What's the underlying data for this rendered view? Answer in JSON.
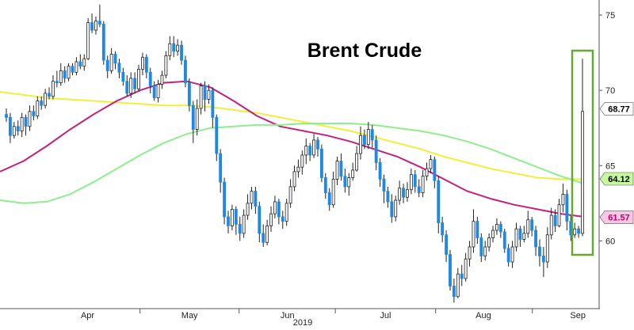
{
  "chart_data": {
    "type": "candlestick",
    "title": "Brent Crude",
    "year_label": "2019",
    "x_ticks": [
      "Apr",
      "May",
      "Jun",
      "Jul",
      "Aug",
      "Sep"
    ],
    "y_ticks": [
      60,
      65,
      70,
      75
    ],
    "ylim": [
      55.5,
      76
    ],
    "grid": false,
    "y_axis_side": "right",
    "candle_colors": {
      "down": "#1e88e5",
      "up": "#ffffff",
      "outline": "#222222"
    },
    "price_tags": [
      {
        "value": 68.77,
        "label": "68.77",
        "bg": "#ffffff",
        "fg": "#000000"
      },
      {
        "value": 64.12,
        "label": "64.12",
        "bg": "#c8f7a0",
        "fg": "#000000"
      },
      {
        "value": 61.57,
        "label": "61.57",
        "bg": "#f7c7e3",
        "fg": "#c0006e"
      }
    ],
    "series": [
      {
        "color": "#f2ee3b",
        "values": [
          69.9,
          69.7,
          69.5,
          69.4,
          69.3,
          69.2,
          69.1,
          69.0,
          69.0,
          68.9,
          68.7,
          68.5,
          68.2,
          67.9,
          67.6,
          67.3,
          66.9,
          66.5,
          66.1,
          65.6,
          65.2,
          64.8,
          64.5,
          64.2,
          64.1,
          64.1
        ]
      },
      {
        "color": "#c2227d",
        "values": [
          64.6,
          65.3,
          66.3,
          67.4,
          68.4,
          69.3,
          70.0,
          70.5,
          70.6,
          70.2,
          69.3,
          68.3,
          67.6,
          67.3,
          67.0,
          66.6,
          66.1,
          65.6,
          64.9,
          64.1,
          63.3,
          62.8,
          62.4,
          62.1,
          61.8,
          61.6
        ]
      },
      {
        "color": "#8eee8e",
        "values": [
          62.7,
          62.5,
          62.6,
          63.1,
          63.9,
          64.8,
          65.7,
          66.5,
          67.1,
          67.5,
          67.6,
          67.7,
          67.7,
          67.8,
          67.8,
          67.8,
          67.7,
          67.5,
          67.3,
          67.0,
          66.6,
          66.1,
          65.5,
          64.9,
          64.3,
          63.8
        ]
      }
    ],
    "candles": [
      [
        68.4,
        68.2,
        68.8,
        67.9
      ],
      [
        68.2,
        67.0,
        68.5,
        66.5
      ],
      [
        67.0,
        67.6,
        67.9,
        66.8
      ],
      [
        67.6,
        67.3,
        68.0,
        67.0
      ],
      [
        67.3,
        68.2,
        68.5,
        66.9
      ],
      [
        68.2,
        67.6,
        68.4,
        67.0
      ],
      [
        67.6,
        68.6,
        69.0,
        67.3
      ],
      [
        68.6,
        68.3,
        69.0,
        68.0
      ],
      [
        68.3,
        69.3,
        69.6,
        68.1
      ],
      [
        69.3,
        69.0,
        69.6,
        68.7
      ],
      [
        69.0,
        69.8,
        70.1,
        68.8
      ],
      [
        69.8,
        69.6,
        70.2,
        69.4
      ],
      [
        69.6,
        70.6,
        71.0,
        69.4
      ],
      [
        70.6,
        70.5,
        71.3,
        70.2
      ],
      [
        70.5,
        71.3,
        71.8,
        70.3
      ],
      [
        71.3,
        70.8,
        71.6,
        70.5
      ],
      [
        70.8,
        71.6,
        71.8,
        70.6
      ],
      [
        71.6,
        71.2,
        71.8,
        71.0
      ],
      [
        71.2,
        71.9,
        72.2,
        71.0
      ],
      [
        71.9,
        71.6,
        72.4,
        71.4
      ],
      [
        71.6,
        72.1,
        72.4,
        71.3
      ],
      [
        72.1,
        74.5,
        74.8,
        72.0
      ],
      [
        74.5,
        74.0,
        75.1,
        73.8
      ],
      [
        74.0,
        74.6,
        74.9,
        73.7
      ],
      [
        74.6,
        74.4,
        75.7,
        74.2
      ],
      [
        74.4,
        72.0,
        74.6,
        71.7
      ],
      [
        72.0,
        71.3,
        72.3,
        70.8
      ],
      [
        71.3,
        72.4,
        72.8,
        71.1
      ],
      [
        72.4,
        71.8,
        72.6,
        71.4
      ],
      [
        71.8,
        71.2,
        72.1,
        70.8
      ],
      [
        71.2,
        70.6,
        71.5,
        70.3
      ],
      [
        70.6,
        69.8,
        71.0,
        69.6
      ],
      [
        69.8,
        70.8,
        71.2,
        69.5
      ],
      [
        70.8,
        70.1,
        71.2,
        69.8
      ],
      [
        70.1,
        71.4,
        71.7,
        69.9
      ],
      [
        71.4,
        72.2,
        72.5,
        71.0
      ],
      [
        72.2,
        71.2,
        72.4,
        70.8
      ],
      [
        71.2,
        70.3,
        71.5,
        69.8
      ],
      [
        70.3,
        69.5,
        70.6,
        69.3
      ],
      [
        69.5,
        70.4,
        70.7,
        69.2
      ],
      [
        70.4,
        71.0,
        71.3,
        70.1
      ],
      [
        71.0,
        72.3,
        72.6,
        70.8
      ],
      [
        72.3,
        73.1,
        73.6,
        72.0
      ],
      [
        73.1,
        72.6,
        73.6,
        72.2
      ],
      [
        72.6,
        73.0,
        73.4,
        72.3
      ],
      [
        73.0,
        72.0,
        73.3,
        71.7
      ],
      [
        72.0,
        70.5,
        72.3,
        70.2
      ],
      [
        70.5,
        69.0,
        70.8,
        68.6
      ],
      [
        69.0,
        67.4,
        69.3,
        66.5
      ],
      [
        67.4,
        68.8,
        69.4,
        67.0
      ],
      [
        68.8,
        70.3,
        70.5,
        68.4
      ],
      [
        70.3,
        69.4,
        70.6,
        68.6
      ],
      [
        69.4,
        70.0,
        70.4,
        69.1
      ],
      [
        70.0,
        68.2,
        70.2,
        67.5
      ],
      [
        68.2,
        65.8,
        68.4,
        65.3
      ],
      [
        65.8,
        63.9,
        66.1,
        63.2
      ],
      [
        63.9,
        61.6,
        64.2,
        61.1
      ],
      [
        61.6,
        61.0,
        62.0,
        60.5
      ],
      [
        61.0,
        62.1,
        62.4,
        60.7
      ],
      [
        62.1,
        61.1,
        62.3,
        60.4
      ],
      [
        61.1,
        60.5,
        61.6,
        60.0
      ],
      [
        60.5,
        61.7,
        62.1,
        60.2
      ],
      [
        61.7,
        62.5,
        63.1,
        61.4
      ],
      [
        62.5,
        63.3,
        63.6,
        62.1
      ],
      [
        63.3,
        62.3,
        63.6,
        61.8
      ],
      [
        62.3,
        60.5,
        62.6,
        59.9
      ],
      [
        60.5,
        59.9,
        61.1,
        59.6
      ],
      [
        59.9,
        61.0,
        61.4,
        59.7
      ],
      [
        61.0,
        61.8,
        62.3,
        60.6
      ],
      [
        61.8,
        62.6,
        63.0,
        61.5
      ],
      [
        62.6,
        61.6,
        62.8,
        61.1
      ],
      [
        61.6,
        61.3,
        62.0,
        60.8
      ],
      [
        61.3,
        62.5,
        62.8,
        61.0
      ],
      [
        62.5,
        63.6,
        64.1,
        62.2
      ],
      [
        63.6,
        64.6,
        65.0,
        63.3
      ],
      [
        64.6,
        64.9,
        65.4,
        64.2
      ],
      [
        64.9,
        65.7,
        66.0,
        64.4
      ],
      [
        65.7,
        66.3,
        66.8,
        65.1
      ],
      [
        66.3,
        65.7,
        66.5,
        65.3
      ],
      [
        65.7,
        66.7,
        67.1,
        65.5
      ],
      [
        66.7,
        66.1,
        66.9,
        65.6
      ],
      [
        66.1,
        64.2,
        66.4,
        63.9
      ],
      [
        64.2,
        63.2,
        64.5,
        62.8
      ],
      [
        63.2,
        62.4,
        63.5,
        62.0
      ],
      [
        62.4,
        64.1,
        64.6,
        62.2
      ],
      [
        64.1,
        65.3,
        65.6,
        63.7
      ],
      [
        65.3,
        64.3,
        65.8,
        64.0
      ],
      [
        64.3,
        63.6,
        64.8,
        63.2
      ],
      [
        63.6,
        64.2,
        64.5,
        63.0
      ],
      [
        64.2,
        64.7,
        65.2,
        64.0
      ],
      [
        64.7,
        65.8,
        66.3,
        64.6
      ],
      [
        65.8,
        67.0,
        67.6,
        65.4
      ],
      [
        67.0,
        66.4,
        67.4,
        66.1
      ],
      [
        66.4,
        67.4,
        67.9,
        66.1
      ],
      [
        67.4,
        66.7,
        67.7,
        66.2
      ],
      [
        66.7,
        65.2,
        67.0,
        64.7
      ],
      [
        65.2,
        64.1,
        65.5,
        63.6
      ],
      [
        64.1,
        63.3,
        64.4,
        62.5
      ],
      [
        63.3,
        62.6,
        63.6,
        62.2
      ],
      [
        62.6,
        61.6,
        63.1,
        61.2
      ],
      [
        61.6,
        62.7,
        63.0,
        61.3
      ],
      [
        62.7,
        63.5,
        64.0,
        62.4
      ],
      [
        63.5,
        62.9,
        63.8,
        62.5
      ],
      [
        62.9,
        63.4,
        63.9,
        62.6
      ],
      [
        63.4,
        64.4,
        64.8,
        63.1
      ],
      [
        64.4,
        63.6,
        64.7,
        63.2
      ],
      [
        63.6,
        63.2,
        64.1,
        62.9
      ],
      [
        63.2,
        64.3,
        64.7,
        62.9
      ],
      [
        64.3,
        64.8,
        65.2,
        64.0
      ],
      [
        64.8,
        65.4,
        65.7,
        64.5
      ],
      [
        65.4,
        64.0,
        65.6,
        63.5
      ],
      [
        64.0,
        61.2,
        64.3,
        60.5
      ],
      [
        61.2,
        60.4,
        61.6,
        59.9
      ],
      [
        60.4,
        59.1,
        60.7,
        58.6
      ],
      [
        59.1,
        57.0,
        59.4,
        56.7
      ],
      [
        57.0,
        56.3,
        57.5,
        55.9
      ],
      [
        56.3,
        57.8,
        58.2,
        56.2
      ],
      [
        57.8,
        57.5,
        58.4,
        57.0
      ],
      [
        57.5,
        58.8,
        59.2,
        57.3
      ],
      [
        58.8,
        59.6,
        60.0,
        58.3
      ],
      [
        59.6,
        61.3,
        62.1,
        59.2
      ],
      [
        61.3,
        60.2,
        61.6,
        59.8
      ],
      [
        60.2,
        59.0,
        60.5,
        58.6
      ],
      [
        59.0,
        59.6,
        60.0,
        58.7
      ],
      [
        59.6,
        60.2,
        60.5,
        59.3
      ],
      [
        60.2,
        60.7,
        61.0,
        59.9
      ],
      [
        60.7,
        61.1,
        61.5,
        60.4
      ],
      [
        61.1,
        60.6,
        61.3,
        60.2
      ],
      [
        60.6,
        59.5,
        60.8,
        59.2
      ],
      [
        59.5,
        58.6,
        59.8,
        58.3
      ],
      [
        58.6,
        59.6,
        60.0,
        58.2
      ],
      [
        59.6,
        60.8,
        61.2,
        59.3
      ],
      [
        60.8,
        60.1,
        61.0,
        59.6
      ],
      [
        60.1,
        60.5,
        61.0,
        59.9
      ],
      [
        60.5,
        61.4,
        62.0,
        60.2
      ],
      [
        61.4,
        60.7,
        61.6,
        60.3
      ],
      [
        60.7,
        59.6,
        61.0,
        59.0
      ],
      [
        59.6,
        59.0,
        60.1,
        58.3
      ],
      [
        59.0,
        58.6,
        59.6,
        57.6
      ],
      [
        58.6,
        60.4,
        60.9,
        58.2
      ],
      [
        60.4,
        61.7,
        62.2,
        60.1
      ],
      [
        61.7,
        61.0,
        62.1,
        60.6
      ],
      [
        61.0,
        62.4,
        62.8,
        60.9
      ],
      [
        62.4,
        63.1,
        63.8,
        61.9
      ],
      [
        63.1,
        61.3,
        63.4,
        60.7
      ],
      [
        61.3,
        60.4,
        61.7,
        60.0
      ],
      [
        60.4,
        60.8,
        61.2,
        60.2
      ],
      [
        60.8,
        60.5,
        61.0,
        60.2
      ],
      [
        60.5,
        68.6,
        72.1,
        60.3
      ]
    ]
  }
}
